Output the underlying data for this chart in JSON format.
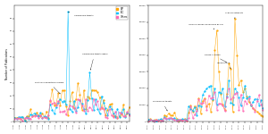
{
  "colors": {
    "BJP": "#ffa500",
    "INC": "#00bfff",
    "Others": "#ff69b4"
  },
  "left_ylabel": "Number of Publications",
  "left_ylim": [
    0,
    90
  ],
  "left_xlim": [
    0,
    58
  ],
  "right_ylim": [
    0,
    70000
  ],
  "right_xlim": [
    0,
    57
  ],
  "left_yticks": [
    0,
    10,
    20,
    30,
    40,
    50,
    60,
    70,
    80
  ],
  "right_yticks": [
    0,
    10000,
    20000,
    30000,
    40000,
    50000,
    60000,
    70000
  ],
  "legend_labels": [
    "BJP",
    "INC",
    "Others"
  ]
}
